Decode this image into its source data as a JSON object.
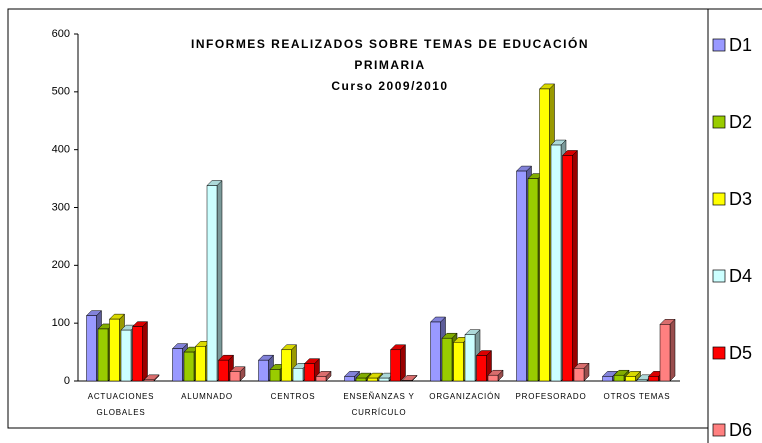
{
  "chart_data": {
    "type": "bar3d",
    "title": "INFORMES REALIZADOS SOBRE TEMAS DE EDUCACIÓN PRIMARIA",
    "subtitle": "Curso 2009/2010",
    "categories": [
      "ACTUACIONES GLOBALES",
      "ALUMNADO",
      "CENTROS",
      "ENSEÑANZAS Y CURRÍCULO",
      "ORGANIZACIÓN",
      "PROFESORADO",
      "OTROS TEMAS"
    ],
    "series": [
      {
        "name": "D1",
        "color": "#9999ff",
        "values": [
          113,
          56,
          36,
          8,
          102,
          363,
          8
        ]
      },
      {
        "name": "D2",
        "color": "#99cc00",
        "values": [
          90,
          50,
          20,
          5,
          74,
          350,
          10
        ]
      },
      {
        "name": "D3",
        "color": "#ffff00",
        "values": [
          107,
          60,
          54,
          5,
          67,
          505,
          8
        ]
      },
      {
        "name": "D4",
        "color": "#ccffff",
        "values": [
          88,
          338,
          22,
          5,
          80,
          408,
          2
        ]
      },
      {
        "name": "D5",
        "color": "#ff0000",
        "values": [
          94,
          36,
          30,
          54,
          44,
          390,
          8
        ]
      },
      {
        "name": "D6",
        "color": "#ff8080",
        "values": [
          2,
          16,
          8,
          1,
          10,
          22,
          98
        ]
      }
    ],
    "ylim": [
      0,
      600
    ],
    "yticks": [
      0,
      100,
      200,
      300,
      400,
      500,
      600
    ],
    "grid": false,
    "legend": "right"
  }
}
